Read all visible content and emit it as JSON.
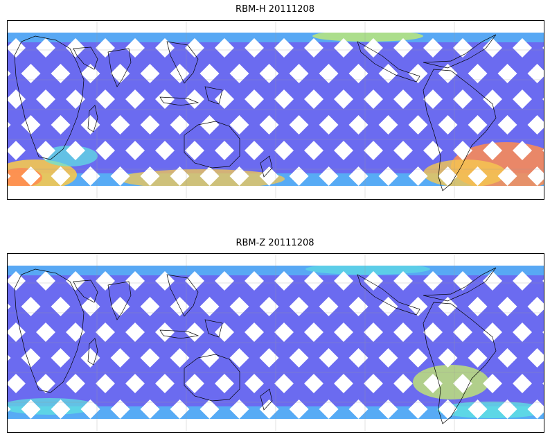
{
  "panels": [
    {
      "id": "top",
      "title": "RBM-H 20111208",
      "colors": {
        "low": "#6b6bf0",
        "mid_low": "#55b3f5",
        "mid": "#5fe6e0",
        "mid_high": "#c8f06a",
        "high": "#f5c850",
        "max": "#ff8c50"
      }
    },
    {
      "id": "bottom",
      "title": "RBM-Z 20111208",
      "colors": {
        "low": "#6b6bf0",
        "mid_low": "#55b3f5",
        "mid": "#5fe6e0",
        "mid_high": "#c8f06a"
      }
    }
  ]
}
